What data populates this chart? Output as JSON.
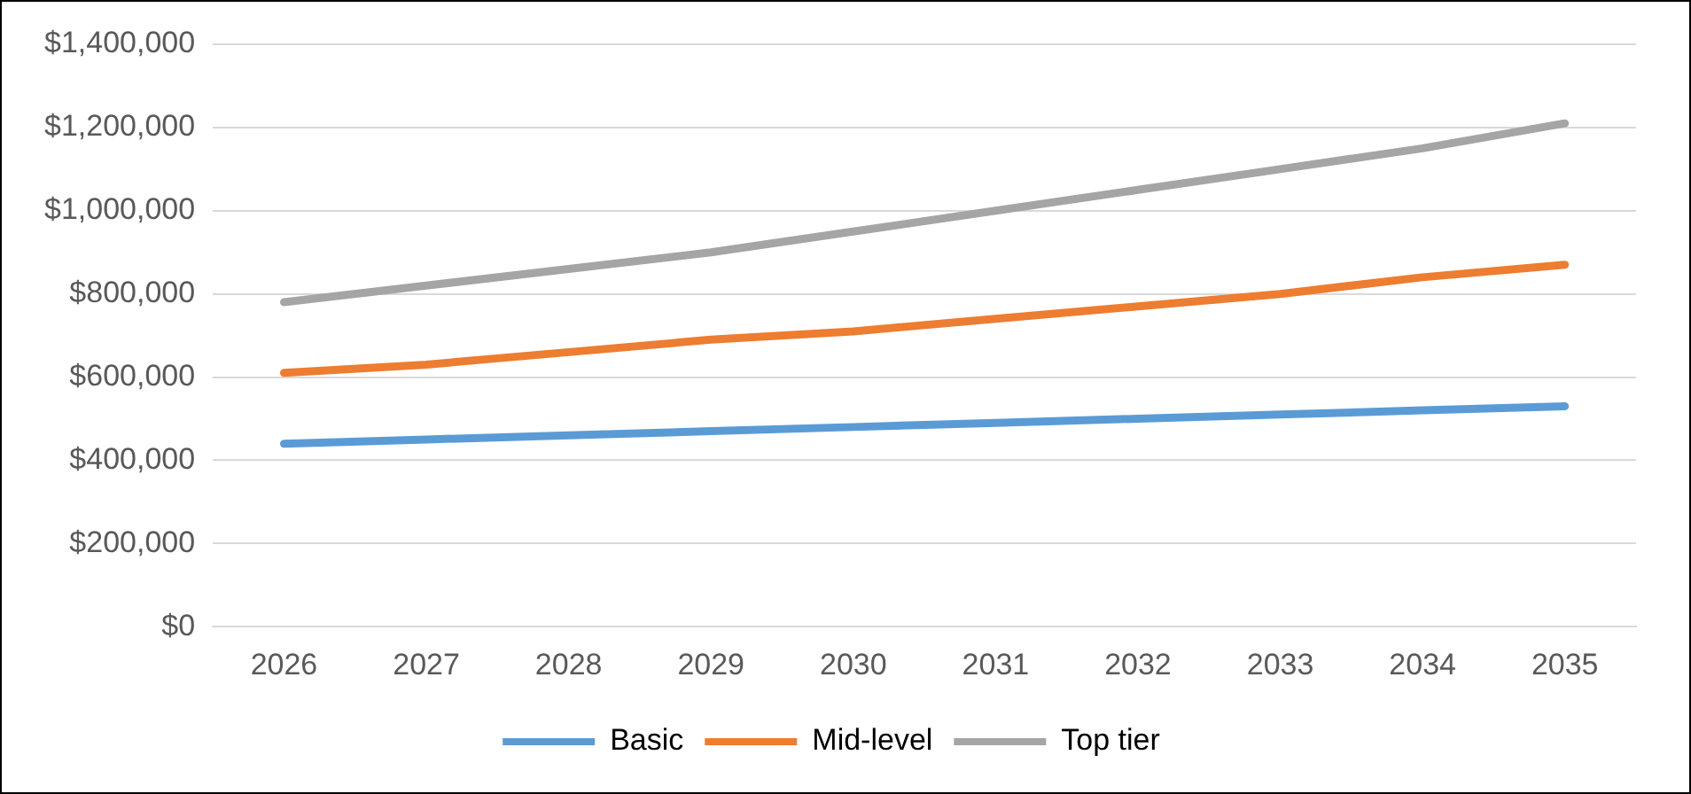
{
  "chart_data": {
    "type": "line",
    "categories": [
      "2026",
      "2027",
      "2028",
      "2029",
      "2030",
      "2031",
      "2032",
      "2033",
      "2034",
      "2035"
    ],
    "series": [
      {
        "name": "Basic",
        "color": "#5b9bd5",
        "values": [
          440000,
          450000,
          460000,
          470000,
          480000,
          490000,
          500000,
          510000,
          520000,
          530000
        ]
      },
      {
        "name": "Mid-level",
        "color": "#ed7d31",
        "values": [
          610000,
          630000,
          660000,
          690000,
          710000,
          740000,
          770000,
          800000,
          840000,
          870000
        ]
      },
      {
        "name": "Top tier",
        "color": "#a5a5a5",
        "values": [
          780000,
          820000,
          860000,
          900000,
          950000,
          1000000,
          1050000,
          1100000,
          1150000,
          1210000
        ]
      }
    ],
    "ylim": [
      0,
      1400000
    ],
    "yticks": [
      {
        "value": 0,
        "label": "$0"
      },
      {
        "value": 200000,
        "label": "$200,000"
      },
      {
        "value": 400000,
        "label": "$400,000"
      },
      {
        "value": 600000,
        "label": "$600,000"
      },
      {
        "value": 800000,
        "label": "$800,000"
      },
      {
        "value": 1000000,
        "label": "$1,000,000"
      },
      {
        "value": 1200000,
        "label": "$1,200,000"
      },
      {
        "value": 1400000,
        "label": "$1,400,000"
      }
    ],
    "grid": "y",
    "legend": "bottom",
    "marker": "none",
    "line_style": "solid"
  }
}
